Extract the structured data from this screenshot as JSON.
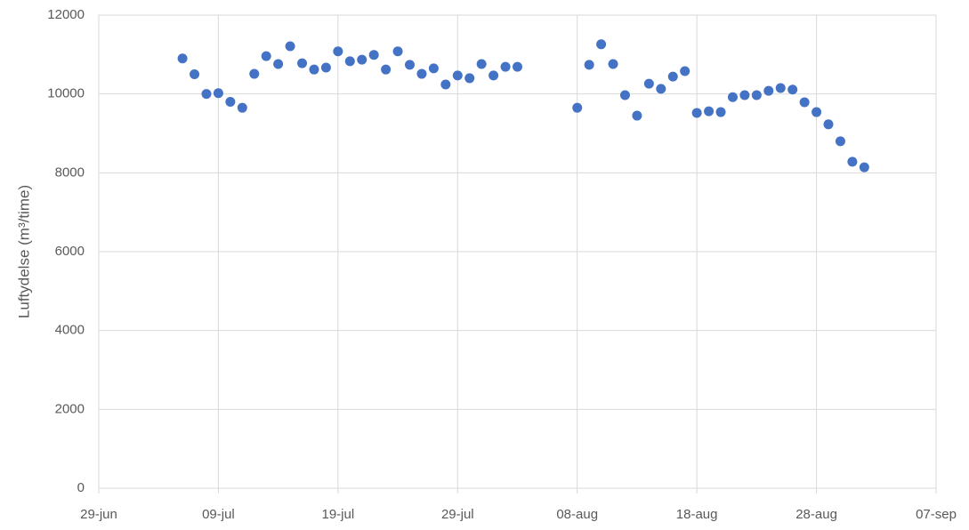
{
  "chart_data": {
    "type": "scatter",
    "y_label": "Luftydelse (m³/time)",
    "color": "#4472c4",
    "grid": true,
    "x": [
      "06-jul",
      "07-jul",
      "08-jul",
      "09-jul",
      "10-jul",
      "11-jul",
      "12-jul",
      "13-jul",
      "14-jul",
      "15-jul",
      "16-jul",
      "17-jul",
      "18-jul",
      "19-jul",
      "20-jul",
      "21-jul",
      "22-jul",
      "23-jul",
      "24-jul",
      "25-jul",
      "26-jul",
      "27-jul",
      "28-jul",
      "29-jul",
      "30-jul",
      "31-jul",
      "01-aug",
      "02-aug",
      "03-aug",
      "08-aug",
      "09-aug",
      "10-aug",
      "11-aug",
      "12-aug",
      "13-aug",
      "14-aug",
      "15-aug",
      "16-aug",
      "17-aug",
      "18-aug",
      "19-aug",
      "20-aug",
      "21-aug",
      "22-aug",
      "23-aug",
      "24-aug",
      "25-aug",
      "26-aug",
      "27-aug",
      "28-aug",
      "29-aug",
      "30-aug",
      "31-aug",
      "01-sep"
    ],
    "values": [
      10900,
      10500,
      10000,
      10020,
      9800,
      9650,
      10510,
      10960,
      10760,
      11210,
      10780,
      10620,
      10670,
      11080,
      10830,
      10870,
      10990,
      10620,
      11080,
      10740,
      10510,
      10650,
      10240,
      10470,
      10400,
      10760,
      10470,
      10690,
      10690,
      9650,
      10740,
      11260,
      10760,
      9970,
      9450,
      10260,
      10130,
      10440,
      10580,
      9520,
      9560,
      9540,
      9920,
      9970,
      9970,
      10080,
      10150,
      10110,
      9790,
      9540,
      9230,
      8800,
      8280,
      8140
    ],
    "xlim": [
      "29-jun",
      "07-sep"
    ],
    "xticks": [
      "29-jun",
      "09-jul",
      "19-jul",
      "29-jul",
      "08-aug",
      "18-aug",
      "28-aug",
      "07-sep"
    ],
    "ylim": [
      0,
      12000
    ],
    "yticks": [
      0,
      2000,
      4000,
      6000,
      8000,
      10000,
      12000
    ]
  }
}
